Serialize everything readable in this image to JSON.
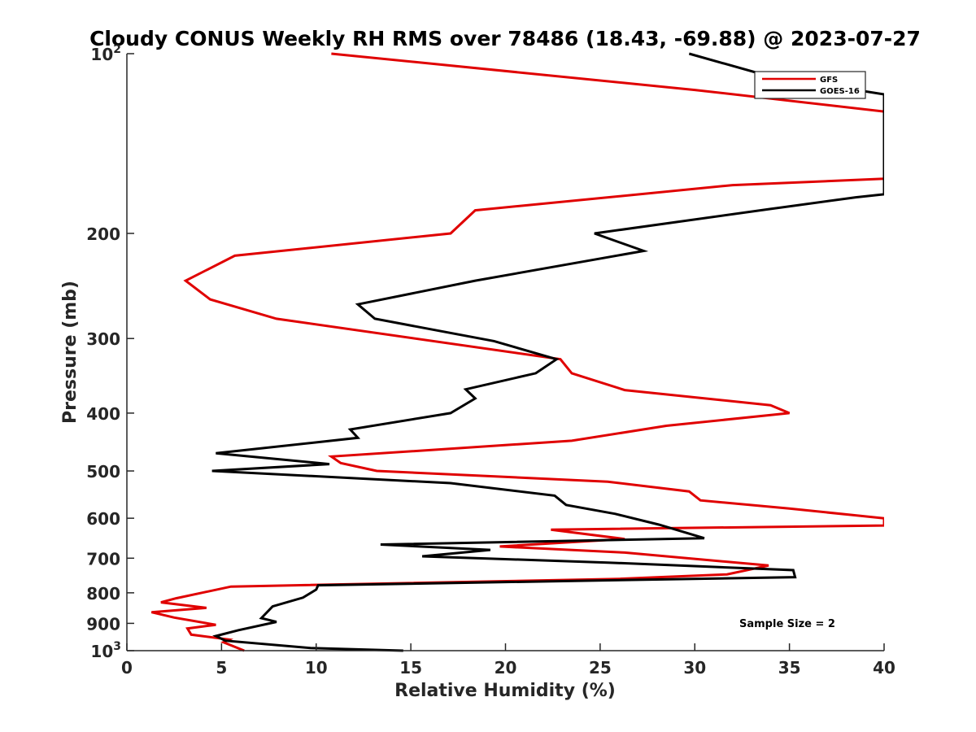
{
  "chart_data": {
    "type": "line",
    "title": "Cloudy CONUS Weekly RH RMS over 78486 (18.43, -69.88) @ 2023-07-27",
    "xlabel": "Relative Humidity (%)",
    "ylabel": "Pressure (mb)",
    "xlim": [
      0,
      40
    ],
    "ylim": [
      100,
      1000
    ],
    "y_scale": "log",
    "y_reversed": true,
    "grid": false,
    "legend_position": "top-right",
    "x_ticks": [
      0,
      5,
      10,
      15,
      20,
      25,
      30,
      35,
      40
    ],
    "x_tick_labels": [
      "0",
      "5",
      "10",
      "15",
      "20",
      "25",
      "30",
      "35",
      "40"
    ],
    "y_ticks": [
      100,
      200,
      300,
      400,
      500,
      600,
      700,
      800,
      900,
      1000
    ],
    "y_tick_labels": [
      {
        "base": "10",
        "exp": "2"
      },
      {
        "base": "200",
        "exp": ""
      },
      {
        "base": "300",
        "exp": ""
      },
      {
        "base": "400",
        "exp": ""
      },
      {
        "base": "500",
        "exp": ""
      },
      {
        "base": "600",
        "exp": ""
      },
      {
        "base": "700",
        "exp": ""
      },
      {
        "base": "800",
        "exp": ""
      },
      {
        "base": "900",
        "exp": ""
      },
      {
        "base": "10",
        "exp": "3"
      }
    ],
    "annotation": "Sample Size = 2",
    "series": [
      {
        "name": "GFS",
        "color": "#e00000",
        "points": [
          [
            10.8,
            100
          ],
          [
            30,
            115
          ],
          [
            40,
            125
          ],
          [
            40,
            162
          ],
          [
            32,
            166
          ],
          [
            18.4,
            183
          ],
          [
            17.1,
            200
          ],
          [
            5.7,
            218
          ],
          [
            3.1,
            240
          ],
          [
            4.4,
            258
          ],
          [
            7.9,
            278
          ],
          [
            22.9,
            325
          ],
          [
            23.5,
            343
          ],
          [
            26.3,
            366
          ],
          [
            34,
            388
          ],
          [
            35,
            400
          ],
          [
            28.5,
            420
          ],
          [
            23.5,
            445
          ],
          [
            10.8,
            473
          ],
          [
            11.3,
            485
          ],
          [
            13.2,
            500
          ],
          [
            25.4,
            521
          ],
          [
            29.7,
            541
          ],
          [
            30.3,
            560
          ],
          [
            35,
            578
          ],
          [
            40,
            600
          ],
          [
            40,
            617
          ],
          [
            22.4,
            627
          ],
          [
            26.3,
            650
          ],
          [
            19.7,
            669
          ],
          [
            26.3,
            685
          ],
          [
            33.9,
            720
          ],
          [
            31.7,
            745
          ],
          [
            26,
            758
          ],
          [
            5.5,
            781
          ],
          [
            2.6,
            817
          ],
          [
            1.8,
            830
          ],
          [
            4.2,
            848
          ],
          [
            1.3,
            862
          ],
          [
            2.5,
            880
          ],
          [
            4.7,
            905
          ],
          [
            3.2,
            918
          ],
          [
            3.4,
            940
          ],
          [
            5.4,
            958
          ],
          [
            5.1,
            968
          ],
          [
            6.2,
            1000
          ]
        ]
      },
      {
        "name": "GOES-16",
        "color": "#000000",
        "points": [
          [
            29.7,
            100
          ],
          [
            33.9,
            109
          ],
          [
            40,
            117
          ],
          [
            40,
            172
          ],
          [
            38.5,
            174
          ],
          [
            34,
            182
          ],
          [
            24.7,
            200
          ],
          [
            27.3,
            214
          ],
          [
            18.4,
            240
          ],
          [
            12.2,
            263
          ],
          [
            13.1,
            278
          ],
          [
            19.4,
            303
          ],
          [
            22.7,
            325
          ],
          [
            21.6,
            343
          ],
          [
            17.9,
            365
          ],
          [
            18.4,
            378
          ],
          [
            17.1,
            400
          ],
          [
            11.8,
            426
          ],
          [
            12.2,
            440
          ],
          [
            4.7,
            467
          ],
          [
            10.7,
            487
          ],
          [
            4.5,
            500
          ],
          [
            17.1,
            524
          ],
          [
            22.6,
            550
          ],
          [
            23.2,
            570
          ],
          [
            25.8,
            590
          ],
          [
            28.1,
            615
          ],
          [
            30.5,
            648
          ],
          [
            13.4,
            664
          ],
          [
            19.2,
            678
          ],
          [
            15.6,
            695
          ],
          [
            25.4,
            712
          ],
          [
            35.2,
            733
          ],
          [
            35.3,
            753
          ],
          [
            10.1,
            777
          ],
          [
            10,
            790
          ],
          [
            9.3,
            815
          ],
          [
            7.7,
            843
          ],
          [
            7.1,
            882
          ],
          [
            7.9,
            895
          ],
          [
            5.9,
            924
          ],
          [
            4.7,
            945
          ],
          [
            5.2,
            962
          ],
          [
            9.7,
            990
          ],
          [
            14.6,
            1000
          ]
        ]
      }
    ]
  }
}
